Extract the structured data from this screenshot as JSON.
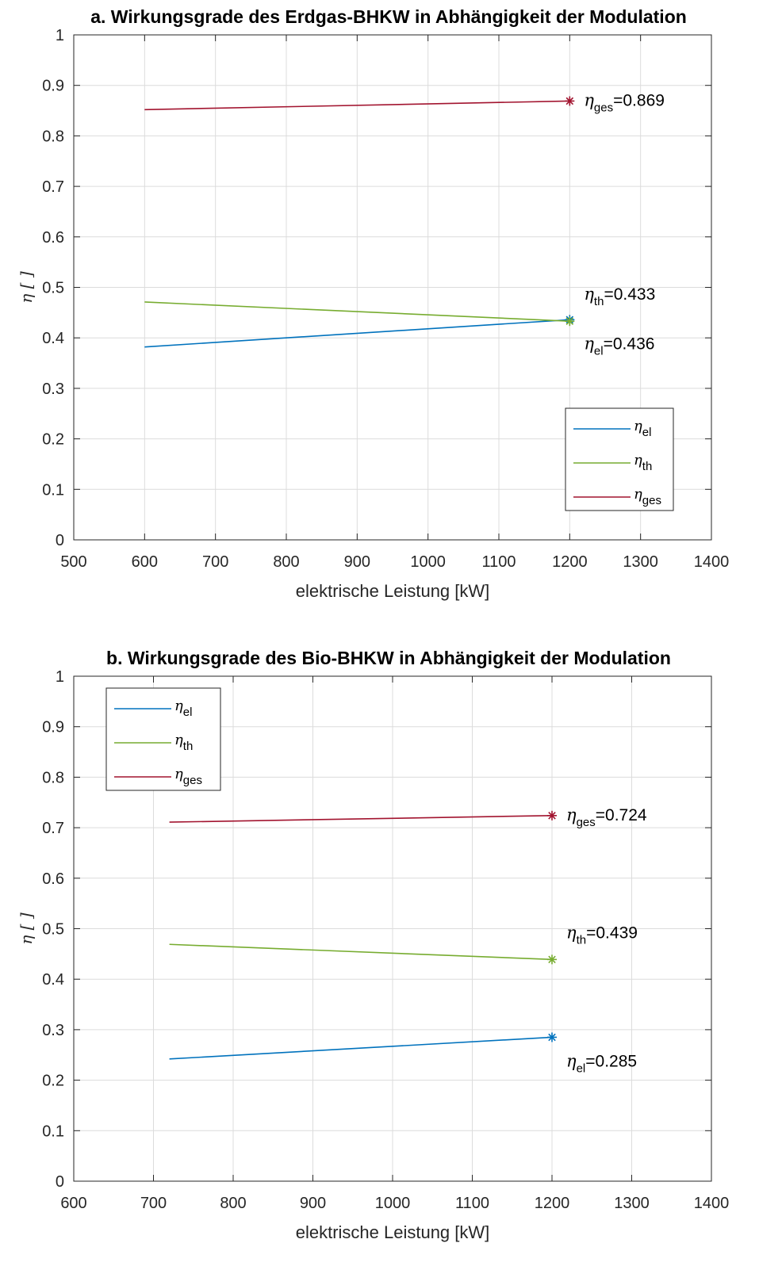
{
  "chart_data": [
    {
      "type": "line",
      "title": "a. Wirkungsgrade des Erdgas-BHKW in Abhängigkeit der Modulation",
      "xlabel": "elektrische Leistung [kW]",
      "ylabel": "η [ ]",
      "xlim": [
        500,
        1400
      ],
      "ylim": [
        0,
        1
      ],
      "xticks": [
        "500",
        "600",
        "700",
        "800",
        "900",
        "1000",
        "1100",
        "1200",
        "1300",
        "1400"
      ],
      "yticks": [
        "0",
        "0.1",
        "0.2",
        "0.3",
        "0.4",
        "0.5",
        "0.6",
        "0.7",
        "0.8",
        "0.9",
        "1"
      ],
      "grid": true,
      "legend_position": "bottom-right",
      "series": [
        {
          "name_symbol": "η",
          "name_sub": "el",
          "color": "#0072BD",
          "x": [
            600,
            1200
          ],
          "y": [
            0.382,
            0.436
          ]
        },
        {
          "name_symbol": "η",
          "name_sub": "th",
          "color": "#77AC30",
          "x": [
            600,
            1200
          ],
          "y": [
            0.471,
            0.433
          ]
        },
        {
          "name_symbol": "η",
          "name_sub": "ges",
          "color": "#A2142F",
          "x": [
            600,
            1200
          ],
          "y": [
            0.852,
            0.869
          ]
        }
      ],
      "annotations": [
        {
          "sym": "η",
          "sub": "ges",
          "text": "=0.869",
          "x": 1200,
          "y": 0.869
        },
        {
          "sym": "η",
          "sub": "th",
          "text": "=0.433",
          "x": 1200,
          "y": 0.433
        },
        {
          "sym": "η",
          "sub": "el",
          "text": "=0.436",
          "x": 1200,
          "y": 0.436
        }
      ]
    },
    {
      "type": "line",
      "title": "b. Wirkungsgrade des Bio-BHKW in Abhängigkeit der Modulation",
      "xlabel": "elektrische Leistung [kW]",
      "ylabel": "η [ ]",
      "xlim": [
        600,
        1400
      ],
      "ylim": [
        0,
        1
      ],
      "xticks": [
        "600",
        "700",
        "800",
        "900",
        "1000",
        "1100",
        "1200",
        "1300",
        "1400"
      ],
      "yticks": [
        "0",
        "0.1",
        "0.2",
        "0.3",
        "0.4",
        "0.5",
        "0.6",
        "0.7",
        "0.8",
        "0.9",
        "1"
      ],
      "grid": true,
      "legend_position": "top-left",
      "series": [
        {
          "name_symbol": "η",
          "name_sub": "el",
          "color": "#0072BD",
          "x": [
            720,
            1200
          ],
          "y": [
            0.242,
            0.285
          ]
        },
        {
          "name_symbol": "η",
          "name_sub": "th",
          "color": "#77AC30",
          "x": [
            720,
            1200
          ],
          "y": [
            0.469,
            0.439
          ]
        },
        {
          "name_symbol": "η",
          "name_sub": "ges",
          "color": "#A2142F",
          "x": [
            720,
            1200
          ],
          "y": [
            0.711,
            0.724
          ]
        }
      ],
      "annotations": [
        {
          "sym": "η",
          "sub": "ges",
          "text": "=0.724",
          "x": 1200,
          "y": 0.724
        },
        {
          "sym": "η",
          "sub": "th",
          "text": "=0.439",
          "x": 1200,
          "y": 0.439
        },
        {
          "sym": "η",
          "sub": "el",
          "text": "=0.285",
          "x": 1200,
          "y": 0.285
        }
      ]
    }
  ]
}
